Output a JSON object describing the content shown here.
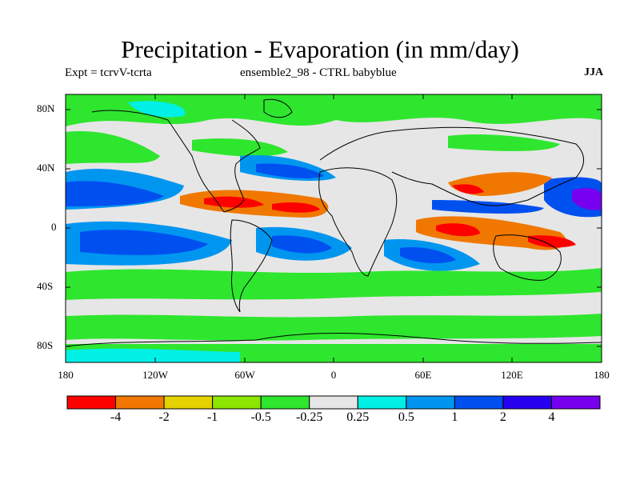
{
  "title": "Precipitation - Evaporation (in mm/day)",
  "subtitle_left": "Expt = tcrvV-tcrta",
  "subtitle_mid": "ensemble2_98 - CTRL babyblue",
  "season": "JJA",
  "lat_labels": [
    "80N",
    "40N",
    "0",
    "40S",
    "80S"
  ],
  "lon_labels": [
    "180",
    "120W",
    "60W",
    "0",
    "60E",
    "120E",
    "180"
  ],
  "colorbar": {
    "colors": [
      "#ff0000",
      "#f07800",
      "#e6d200",
      "#8ce600",
      "#2ee62e",
      "#e6e6e6",
      "#00f0e6",
      "#0096f0",
      "#0050f0",
      "#2800f0",
      "#7800f0"
    ],
    "labels": [
      "-4",
      "-2",
      "-1",
      "-0.5",
      "-0.25",
      "0.25",
      "0.5",
      "1",
      "2",
      "4"
    ]
  },
  "colors": {
    "background_field": "#e6e6e6",
    "coastline": "#000000"
  }
}
